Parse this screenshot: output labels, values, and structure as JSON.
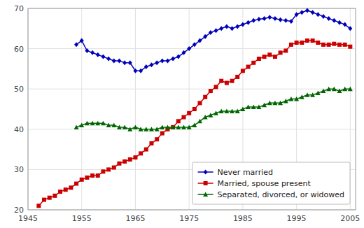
{
  "chart_data": {
    "type": "line",
    "series": [
      {
        "name": "Never married",
        "color": "#0000bb",
        "marker": "diamond",
        "x": [
          1954,
          1955,
          1956,
          1957,
          1958,
          1959,
          1960,
          1961,
          1962,
          1963,
          1964,
          1965,
          1966,
          1967,
          1968,
          1969,
          1970,
          1971,
          1972,
          1973,
          1974,
          1975,
          1976,
          1977,
          1978,
          1979,
          1980,
          1981,
          1982,
          1983,
          1984,
          1985,
          1986,
          1987,
          1988,
          1989,
          1990,
          1991,
          1992,
          1993,
          1994,
          1995,
          1996,
          1997,
          1998,
          1999,
          2000,
          2001,
          2002,
          2003,
          2004,
          2005
        ],
        "values": [
          61.0,
          62.0,
          59.5,
          59.0,
          58.5,
          58.0,
          57.5,
          57.0,
          57.0,
          56.5,
          56.5,
          54.5,
          54.5,
          55.5,
          56.0,
          56.5,
          57.0,
          57.0,
          57.5,
          58.0,
          59.0,
          60.0,
          61.0,
          62.0,
          63.0,
          64.0,
          64.5,
          65.0,
          65.5,
          65.0,
          65.5,
          66.0,
          66.5,
          67.0,
          67.3,
          67.5,
          67.8,
          67.5,
          67.2,
          67.0,
          66.8,
          68.5,
          69.0,
          69.5,
          69.0,
          68.5,
          68.0,
          67.5,
          67.0,
          66.5,
          66.0,
          65.0
        ]
      },
      {
        "name": "Married, spouse present",
        "color": "#cc0000",
        "marker": "square",
        "x": [
          1947,
          1948,
          1949,
          1950,
          1951,
          1952,
          1953,
          1954,
          1955,
          1956,
          1957,
          1958,
          1959,
          1960,
          1961,
          1962,
          1963,
          1964,
          1965,
          1966,
          1967,
          1968,
          1969,
          1970,
          1971,
          1972,
          1973,
          1974,
          1975,
          1976,
          1977,
          1978,
          1979,
          1980,
          1981,
          1982,
          1983,
          1984,
          1985,
          1986,
          1987,
          1988,
          1989,
          1990,
          1991,
          1992,
          1993,
          1994,
          1995,
          1996,
          1997,
          1998,
          1999,
          2000,
          2001,
          2002,
          2003,
          2004,
          2005
        ],
        "values": [
          21.0,
          22.5,
          23.0,
          23.5,
          24.5,
          25.0,
          25.5,
          26.5,
          27.5,
          28.0,
          28.5,
          28.5,
          29.5,
          30.0,
          30.5,
          31.5,
          32.0,
          32.5,
          33.0,
          34.0,
          35.0,
          36.5,
          37.5,
          39.0,
          40.0,
          40.5,
          42.0,
          43.0,
          44.0,
          45.0,
          46.5,
          48.0,
          49.5,
          50.5,
          52.0,
          51.5,
          52.0,
          53.0,
          54.5,
          55.5,
          56.5,
          57.5,
          58.0,
          58.5,
          58.0,
          59.0,
          59.5,
          61.0,
          61.5,
          61.5,
          62.0,
          62.0,
          61.5,
          61.0,
          61.0,
          61.2,
          61.0,
          61.0,
          60.5
        ]
      },
      {
        "name": "Separated, divorced, or widowed",
        "color": "#006600",
        "marker": "triangle",
        "x": [
          1954,
          1955,
          1956,
          1957,
          1958,
          1959,
          1960,
          1961,
          1962,
          1963,
          1964,
          1965,
          1966,
          1967,
          1968,
          1969,
          1970,
          1971,
          1972,
          1973,
          1974,
          1975,
          1976,
          1977,
          1978,
          1979,
          1980,
          1981,
          1982,
          1983,
          1984,
          1985,
          1986,
          1987,
          1988,
          1989,
          1990,
          1991,
          1992,
          1993,
          1994,
          1995,
          1996,
          1997,
          1998,
          1999,
          2000,
          2001,
          2002,
          2003,
          2004,
          2005
        ],
        "values": [
          40.5,
          41.0,
          41.5,
          41.5,
          41.5,
          41.5,
          41.0,
          41.0,
          40.5,
          40.5,
          40.0,
          40.5,
          40.0,
          40.0,
          40.0,
          40.0,
          40.5,
          40.5,
          40.5,
          40.5,
          40.5,
          40.5,
          41.0,
          42.0,
          43.0,
          43.5,
          44.0,
          44.5,
          44.5,
          44.5,
          44.5,
          45.0,
          45.5,
          45.5,
          45.5,
          46.0,
          46.5,
          46.5,
          46.5,
          47.0,
          47.5,
          47.5,
          48.0,
          48.5,
          48.5,
          49.0,
          49.5,
          50.0,
          50.0,
          49.5,
          50.0,
          50.0
        ]
      }
    ],
    "xlim": [
      1945,
      2006
    ],
    "ylim": [
      20,
      70
    ],
    "xticks": [
      1945,
      1955,
      1965,
      1975,
      1985,
      1995,
      2005
    ],
    "yticks": [
      20,
      30,
      40,
      50,
      60,
      70
    ],
    "grid": true,
    "legend": "lower right"
  }
}
